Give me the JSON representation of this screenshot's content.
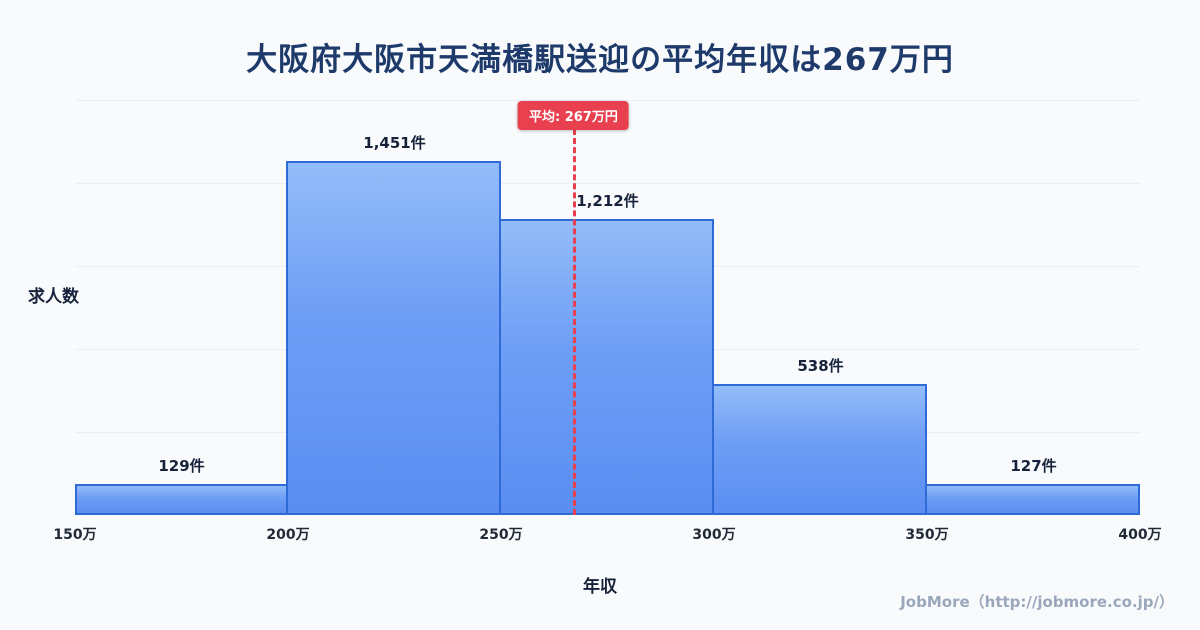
{
  "title": "大阪府大阪市天満橋駅送迎の平均年収は267万円",
  "mean_badge": "平均: 267万円",
  "y_axis_title": "求人数",
  "x_axis_title": "年収",
  "footer": "JobMore（http://jobmore.co.jp/）",
  "chart_data": {
    "type": "bar",
    "title": "大阪府大阪市天満橋駅送迎の平均年収は267万円",
    "xlabel": "年収",
    "ylabel": "求人数",
    "x_ticks": [
      "150万",
      "200万",
      "250万",
      "300万",
      "350万",
      "400万"
    ],
    "bins": [
      [
        150,
        200
      ],
      [
        200,
        250
      ],
      [
        250,
        300
      ],
      [
        300,
        350
      ],
      [
        350,
        400
      ]
    ],
    "values": [
      129,
      1451,
      1212,
      538,
      127
    ],
    "value_labels": [
      "129件",
      "1,451件",
      "1,212件",
      "538件",
      "127件"
    ],
    "mean": 267,
    "mean_label": "平均: 267万円",
    "x_range": [
      150,
      400
    ],
    "ylim": [
      0,
      1700
    ],
    "grid": true,
    "legend": "none",
    "colors": {
      "background": "#f8fafc",
      "bar_fill_top": "#93bcf9",
      "bar_fill_bottom": "#5b8ef2",
      "bar_border": "#2e6bd6",
      "mean_line": "#e8404f",
      "badge_bg": "#e8404f",
      "badge_text": "#ffffff",
      "title": "#1d3a6b",
      "gridline": "#e9eef5",
      "footer_text": "#9aa7bb"
    }
  }
}
